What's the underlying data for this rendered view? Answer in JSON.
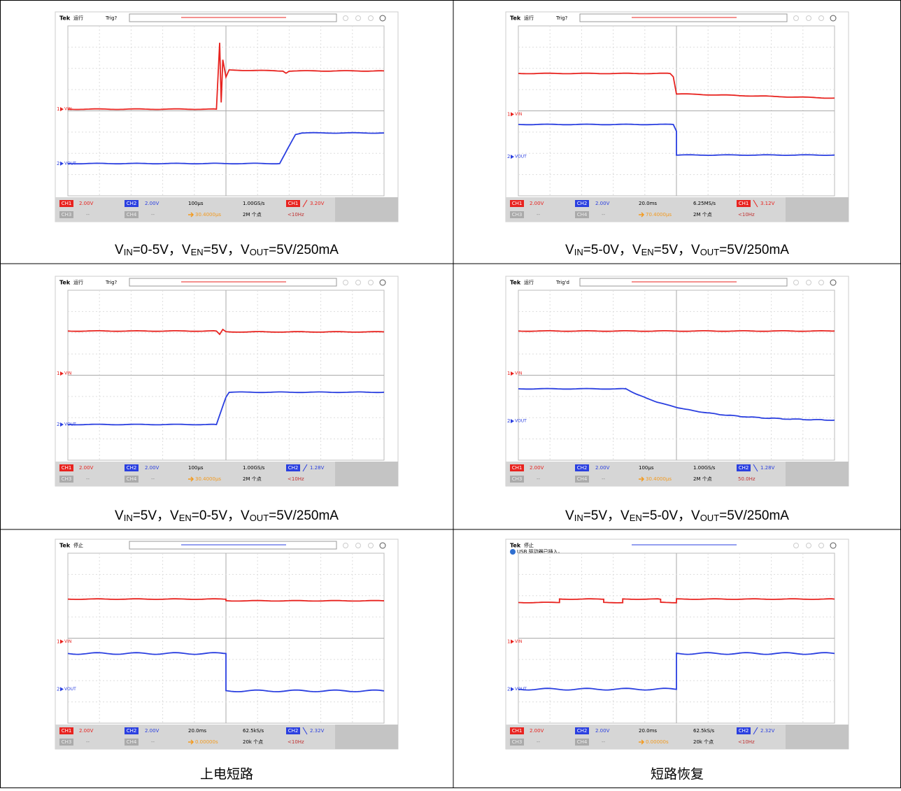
{
  "scope_common": {
    "brand": "Tek",
    "ch1": "CH1",
    "ch2": "CH2",
    "ch3": "CH3",
    "ch4": "CH4",
    "off": "--",
    "ch1_marker": "1",
    "ch2_marker": "2",
    "ch1_label": "VIN",
    "ch2_label": "VOUT"
  },
  "cells": [
    {
      "scope": {
        "status": "运行",
        "trig": "Trig?",
        "timebase": "100µs",
        "ch1_scale": "2.00V",
        "ch2_scale": "2.00V",
        "sample_rate": "1.00GS/s",
        "trigger_source": "CH1",
        "trigger_level": "3.20V",
        "position": "30.4000µs",
        "points": "2M 个点",
        "trigger_freq": "<10Hz"
      },
      "caption": [
        "V",
        "IN",
        "=0-5V，V",
        "EN",
        "=5V，V",
        "OUT",
        "=5V/250mA"
      ]
    },
    {
      "scope": {
        "status": "运行",
        "trig": "Trig?",
        "timebase": "20.0ms",
        "ch1_scale": "2.00V",
        "ch2_scale": "2.00V",
        "sample_rate": "6.25MS/s",
        "trigger_source": "CH1",
        "trigger_level": "3.12V",
        "position": "70.4000µs",
        "points": "2M 个点",
        "trigger_freq": "<10Hz"
      },
      "caption": [
        "V",
        "IN",
        "=5-0V，V",
        "EN",
        "=5V，V",
        "OUT",
        "=5V/250mA"
      ]
    },
    {
      "scope": {
        "status": "运行",
        "trig": "Trig?",
        "timebase": "100µs",
        "ch1_scale": "2.00V",
        "ch2_scale": "2.00V",
        "sample_rate": "1.00GS/s",
        "trigger_source": "CH2",
        "trigger_level": "1.28V",
        "position": "30.4000µs",
        "points": "2M 个点",
        "trigger_freq": "<10Hz"
      },
      "caption": [
        "V",
        "IN",
        "=5V，V",
        "EN",
        "=0-5V，V",
        "OUT",
        "=5V/250mA"
      ]
    },
    {
      "scope": {
        "status": "运行",
        "trig": "Trig'd",
        "timebase": "100µs",
        "ch1_scale": "2.00V",
        "ch2_scale": "2.00V",
        "sample_rate": "1.00GS/s",
        "trigger_source": "CH2",
        "trigger_level": "1.28V",
        "position": "30.4000µs",
        "points": "2M 个点",
        "trigger_freq": "50.0Hz"
      },
      "caption": [
        "V",
        "IN",
        "=5V，V",
        "EN",
        "=5-0V，V",
        "OUT",
        "=5V/250mA"
      ]
    },
    {
      "scope": {
        "status": "停止",
        "timebase": "20.0ms",
        "ch1_scale": "2.00V",
        "ch2_scale": "2.00V",
        "sample_rate": "62.5kS/s",
        "trigger_source": "CH2",
        "trigger_level": "2.32V",
        "position": "0.00000s",
        "points": "20k 个点",
        "trigger_freq": "<10Hz"
      },
      "caption": [
        "上电短路"
      ]
    },
    {
      "scope": {
        "status": "停止",
        "notice": "USB 驱动器已插入。",
        "timebase": "20.0ms",
        "ch1_scale": "2.00V",
        "ch2_scale": "2.00V",
        "sample_rate": "62.5kS/s",
        "trigger_source": "CH2",
        "trigger_level": "2.32V",
        "position": "0.00000s",
        "points": "20k 个点",
        "trigger_freq": "<10Hz"
      },
      "caption": [
        "短路恢复"
      ]
    }
  ]
}
